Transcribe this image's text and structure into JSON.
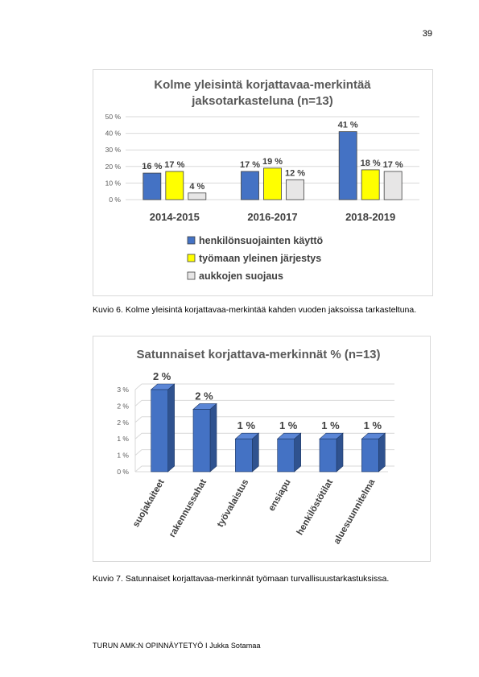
{
  "page_number": "39",
  "caption_1": "Kuvio 6. Kolme yleisintä korjattavaa-merkintää kahden vuoden jaksoissa tarkasteltuna.",
  "caption_2": "Kuvio 7. Satunnaiset korjattavaa-merkinnät työmaan turvallisuustarkastuksissa.",
  "footer": "TURUN AMK:N OPINNÄYTETYÖ I Jukka Sotamaa",
  "chart_data": [
    {
      "type": "bar",
      "title_lines": [
        "Kolme yleisintä korjattavaa-merkintää",
        "jaksotarkasteluna (n=13)"
      ],
      "categories": [
        "2014-2015",
        "2016-2017",
        "2018-2019"
      ],
      "series": [
        {
          "name": "henkilönsuojainten käyttö",
          "color": "#4472c4",
          "values": [
            16,
            17,
            41
          ],
          "labels": [
            "16 %",
            "17 %",
            "41 %"
          ]
        },
        {
          "name": "työmaan yleinen järjestys",
          "color": "#ffff00",
          "values": [
            17,
            19,
            18
          ],
          "labels": [
            "17 %",
            "19 %",
            "18 %"
          ]
        },
        {
          "name": "aukkojen suojaus",
          "color": "#e7e6e6",
          "values": [
            4,
            12,
            17
          ],
          "labels": [
            "4 %",
            "12 %",
            "17 %"
          ]
        }
      ],
      "y_ticks": [
        "0 %",
        "10 %",
        "20 %",
        "30 %",
        "40 %",
        "50 %"
      ],
      "ylim": [
        0,
        50
      ],
      "grid": true,
      "legend_position": "bottom"
    },
    {
      "type": "bar",
      "style": "3d",
      "title": "Satunnaiset korjattava-merkinnät % (n=13)",
      "categories": [
        "suojakaiteet",
        "rakennussahat",
        "työvalaistus",
        "ensiapu",
        "henkilöstötilat",
        "aluesuunnitelma"
      ],
      "values": [
        2.5,
        1.9,
        1.0,
        1.0,
        1.0,
        1.0
      ],
      "labels": [
        "2 %",
        "2 %",
        "1 %",
        "1 %",
        "1 %",
        "1 %"
      ],
      "color": "#4472c4",
      "y_ticks": [
        "0 %",
        "1 %",
        "1 %",
        "2 %",
        "2 %",
        "3 %"
      ],
      "y_tick_values": [
        0,
        0.5,
        1.0,
        1.5,
        2.0,
        2.5
      ],
      "ylim": [
        0,
        2.5
      ],
      "grid": true
    }
  ]
}
